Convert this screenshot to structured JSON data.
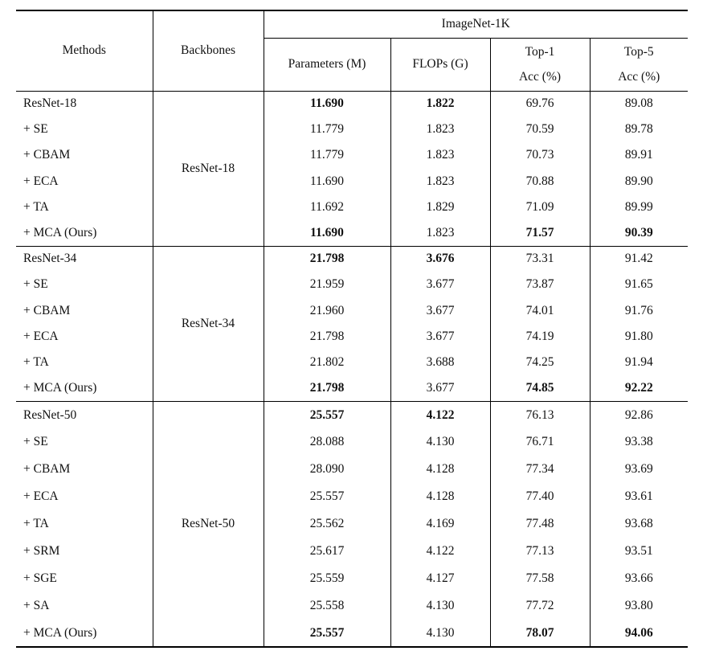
{
  "header": {
    "methods": "Methods",
    "backbones": "Backbones",
    "dataset": "ImageNet-1K",
    "params": "Parameters (M)",
    "flops": "FLOPs (G)",
    "top1_line1": "Top-1",
    "top1_line2": "Acc (%)",
    "top5_line1": "Top-5",
    "top5_line2": "Acc (%)"
  },
  "groups": [
    {
      "backbone": "ResNet-18",
      "rows": [
        {
          "method": "ResNet-18",
          "params": "11.690",
          "flops": "1.822",
          "top1": "69.76",
          "top5": "89.08",
          "bold": [
            "params",
            "flops"
          ]
        },
        {
          "method": "+ SE",
          "params": "11.779",
          "flops": "1.823",
          "top1": "70.59",
          "top5": "89.78",
          "bold": []
        },
        {
          "method": "+ CBAM",
          "params": "11.779",
          "flops": "1.823",
          "top1": "70.73",
          "top5": "89.91",
          "bold": []
        },
        {
          "method": "+ ECA",
          "params": "11.690",
          "flops": "1.823",
          "top1": "70.88",
          "top5": "89.90",
          "bold": []
        },
        {
          "method": "+ TA",
          "params": "11.692",
          "flops": "1.829",
          "top1": "71.09",
          "top5": "89.99",
          "bold": []
        },
        {
          "method": "+ MCA (Ours)",
          "params": "11.690",
          "flops": "1.823",
          "top1": "71.57",
          "top5": "90.39",
          "bold": [
            "params",
            "top1",
            "top5"
          ]
        }
      ]
    },
    {
      "backbone": "ResNet-34",
      "rows": [
        {
          "method": "ResNet-34",
          "params": "21.798",
          "flops": "3.676",
          "top1": "73.31",
          "top5": "91.42",
          "bold": [
            "params",
            "flops"
          ]
        },
        {
          "method": "+ SE",
          "params": "21.959",
          "flops": "3.677",
          "top1": "73.87",
          "top5": "91.65",
          "bold": []
        },
        {
          "method": "+ CBAM",
          "params": "21.960",
          "flops": "3.677",
          "top1": "74.01",
          "top5": "91.76",
          "bold": []
        },
        {
          "method": "+ ECA",
          "params": "21.798",
          "flops": "3.677",
          "top1": "74.19",
          "top5": "91.80",
          "bold": []
        },
        {
          "method": "+ TA",
          "params": "21.802",
          "flops": "3.688",
          "top1": "74.25",
          "top5": "91.94",
          "bold": []
        },
        {
          "method": "+ MCA (Ours)",
          "params": "21.798",
          "flops": "3.677",
          "top1": "74.85",
          "top5": "92.22",
          "bold": [
            "params",
            "top1",
            "top5"
          ]
        }
      ]
    },
    {
      "backbone": "ResNet-50",
      "rows": [
        {
          "method": "ResNet-50",
          "params": "25.557",
          "flops": "4.122",
          "top1": "76.13",
          "top5": "92.86",
          "bold": [
            "params",
            "flops"
          ]
        },
        {
          "method": "+ SE",
          "params": "28.088",
          "flops": "4.130",
          "top1": "76.71",
          "top5": "93.38",
          "bold": []
        },
        {
          "method": "+ CBAM",
          "params": "28.090",
          "flops": "4.128",
          "top1": "77.34",
          "top5": "93.69",
          "bold": []
        },
        {
          "method": "+ ECA",
          "params": "25.557",
          "flops": "4.128",
          "top1": "77.40",
          "top5": "93.61",
          "bold": []
        },
        {
          "method": "+ TA",
          "params": "25.562",
          "flops": "4.169",
          "top1": "77.48",
          "top5": "93.68",
          "bold": []
        },
        {
          "method": "+ SRM",
          "params": "25.617",
          "flops": "4.122",
          "top1": "77.13",
          "top5": "93.51",
          "bold": []
        },
        {
          "method": "+ SGE",
          "params": "25.559",
          "flops": "4.127",
          "top1": "77.58",
          "top5": "93.66",
          "bold": []
        },
        {
          "method": "+ SA",
          "params": "25.558",
          "flops": "4.130",
          "top1": "77.72",
          "top5": "93.80",
          "bold": []
        },
        {
          "method": "+ MCA (Ours)",
          "params": "25.557",
          "flops": "4.130",
          "top1": "78.07",
          "top5": "94.06",
          "bold": [
            "params",
            "top1",
            "top5"
          ]
        }
      ]
    }
  ]
}
